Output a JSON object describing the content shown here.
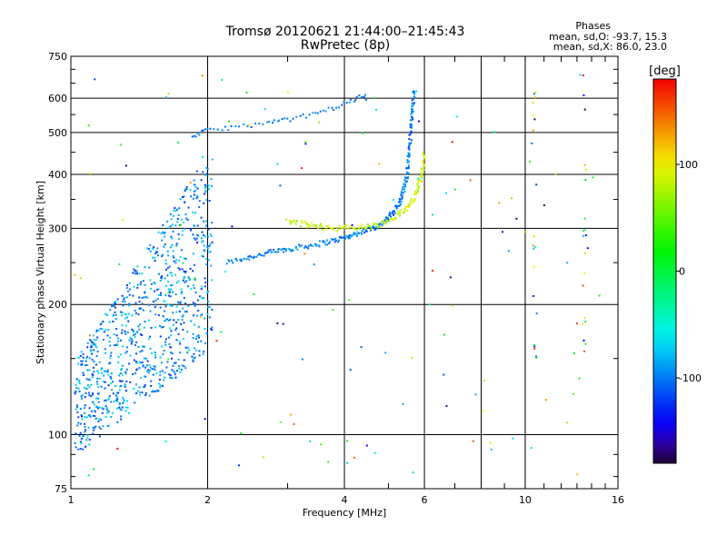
{
  "header": {
    "title": "Tromsø 20120621 21:44:00–21:45:43",
    "subtitle": "RwPretec (8p)"
  },
  "stats": {
    "heading": "Phases",
    "line_o": "mean, sd,O: -93.7, 15.3",
    "line_x": "mean, sd,X:  86.0, 23.0"
  },
  "chart_data": {
    "type": "scatter",
    "xlabel": "Frequency [MHz]",
    "ylabel": "Stationary phase Virtual Height [km]",
    "xscale": "log",
    "yscale": "log",
    "xlim": [
      1,
      16
    ],
    "ylim": [
      75,
      750
    ],
    "grid": true,
    "x_ticks": [
      1,
      2,
      4,
      6,
      10,
      16
    ],
    "x_tick_labels": [
      "1",
      "2",
      "4",
      "6",
      "10",
      "16"
    ],
    "x_gridlines": [
      2,
      4,
      6,
      8,
      10
    ],
    "y_ticks": [
      75,
      100,
      200,
      300,
      400,
      500,
      600,
      750
    ],
    "y_tick_labels": [
      "75",
      "100",
      "200",
      "300",
      "400",
      "500",
      "600",
      "750"
    ],
    "y_gridlines": [
      100,
      200,
      300,
      400,
      500,
      600
    ],
    "colorbar": {
      "label": "[deg]",
      "range": [
        -180,
        180
      ],
      "ticks": [
        100,
        0,
        -100
      ],
      "tick_labels": [
        "100",
        "0",
        "-100"
      ]
    },
    "traces": [
      {
        "kind": "F2 O-mode trace",
        "phase": -100,
        "points": [
          [
            2.2,
            250
          ],
          [
            2.5,
            258
          ],
          [
            2.8,
            265
          ],
          [
            3.1,
            270
          ],
          [
            3.5,
            276
          ],
          [
            3.9,
            283
          ],
          [
            4.2,
            290
          ],
          [
            4.6,
            300
          ],
          [
            4.9,
            310
          ],
          [
            5.1,
            325
          ],
          [
            5.3,
            345
          ],
          [
            5.4,
            370
          ],
          [
            5.5,
            400
          ],
          [
            5.55,
            450
          ],
          [
            5.6,
            500
          ],
          [
            5.65,
            560
          ],
          [
            5.7,
            630
          ]
        ]
      },
      {
        "kind": "F2 X-mode trace",
        "phase": 86,
        "points": [
          [
            3.0,
            312
          ],
          [
            3.3,
            306
          ],
          [
            3.6,
            302
          ],
          [
            4.0,
            300
          ],
          [
            4.4,
            302
          ],
          [
            4.8,
            305
          ],
          [
            5.2,
            318
          ],
          [
            5.5,
            335
          ],
          [
            5.7,
            355
          ],
          [
            5.85,
            380
          ],
          [
            5.95,
            410
          ],
          [
            6.0,
            450
          ]
        ]
      },
      {
        "kind": "second-hop trace",
        "phase": -100,
        "points": [
          [
            1.85,
            490
          ],
          [
            2.0,
            505
          ],
          [
            2.3,
            515
          ],
          [
            2.7,
            525
          ],
          [
            3.0,
            535
          ],
          [
            3.4,
            550
          ],
          [
            3.8,
            570
          ],
          [
            4.2,
            595
          ],
          [
            4.5,
            615
          ]
        ]
      },
      {
        "kind": "low-frequency cluster",
        "phase": -95,
        "points": [
          [
            1.0,
            110
          ],
          [
            1.2,
            115
          ],
          [
            1.4,
            150
          ],
          [
            1.6,
            200
          ],
          [
            1.8,
            250
          ],
          [
            1.95,
            300
          ],
          [
            1.7,
            360
          ],
          [
            1.5,
            180
          ],
          [
            1.3,
            135
          ]
        ]
      }
    ]
  }
}
